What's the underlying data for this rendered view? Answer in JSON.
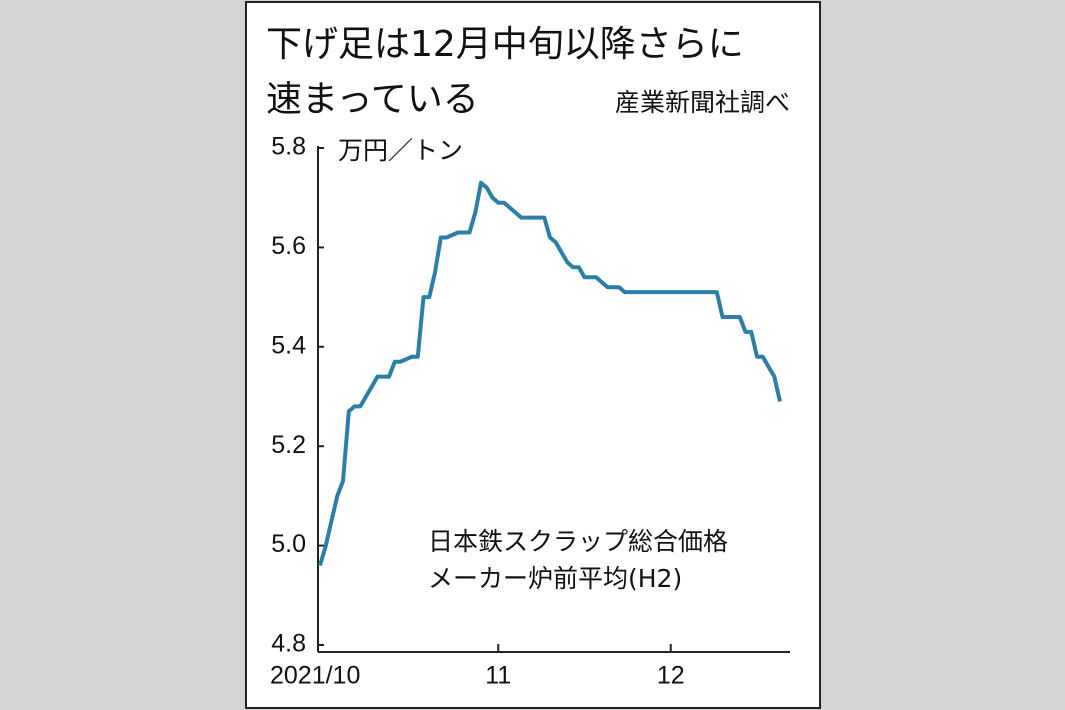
{
  "chart_data": {
    "type": "line",
    "title_lines": [
      "下げ足は12月中旬以降さらに",
      "速まっている"
    ],
    "source": "産業新聞社調べ",
    "y_unit": "万円／トン",
    "annotation_lines": [
      "日本鉄スクラップ総合価格",
      "メーカー炉前平均(H2)"
    ],
    "categories": [
      "2021/10",
      null,
      null,
      null,
      null,
      null,
      null,
      null,
      null,
      null,
      null,
      null,
      null,
      null,
      null,
      null,
      null,
      null,
      null,
      null,
      null,
      null,
      null,
      null,
      null,
      null,
      null,
      null,
      null,
      null,
      null,
      "11",
      null,
      null,
      null,
      null,
      null,
      null,
      null,
      null,
      null,
      null,
      null,
      null,
      null,
      null,
      null,
      null,
      null,
      null,
      null,
      null,
      null,
      null,
      null,
      null,
      null,
      null,
      null,
      null,
      null,
      "12",
      null,
      null,
      null,
      null,
      null,
      null,
      null,
      null,
      null,
      null,
      null,
      null,
      null,
      null,
      null,
      null,
      null,
      null,
      null
    ],
    "values": [
      4.96,
      5.0,
      5.05,
      5.1,
      5.13,
      5.27,
      5.28,
      5.28,
      5.3,
      5.32,
      5.34,
      5.34,
      5.34,
      5.37,
      5.37,
      5.375,
      5.38,
      5.38,
      5.5,
      5.5,
      5.55,
      5.62,
      5.62,
      5.625,
      5.63,
      5.63,
      5.63,
      5.67,
      5.73,
      5.72,
      5.7,
      5.69,
      5.69,
      5.68,
      5.67,
      5.66,
      5.66,
      5.66,
      5.66,
      5.66,
      5.62,
      5.61,
      5.59,
      5.57,
      5.56,
      5.56,
      5.54,
      5.54,
      5.54,
      5.53,
      5.52,
      5.52,
      5.52,
      5.51,
      5.51,
      5.51,
      5.51,
      5.51,
      5.51,
      5.51,
      5.51,
      5.51,
      5.51,
      5.51,
      5.51,
      5.51,
      5.51,
      5.51,
      5.51,
      5.51,
      5.46,
      5.46,
      5.46,
      5.46,
      5.43,
      5.43,
      5.38,
      5.38,
      5.36,
      5.34,
      5.29
    ],
    "color": "#2b7fa7",
    "ylim": [
      4.8,
      5.8
    ],
    "yticks": [
      4.8,
      {
        "value": 5,
        "label": "5.0"
      },
      5.2,
      5.4,
      5.6,
      5.8
    ],
    "grid": false
  }
}
